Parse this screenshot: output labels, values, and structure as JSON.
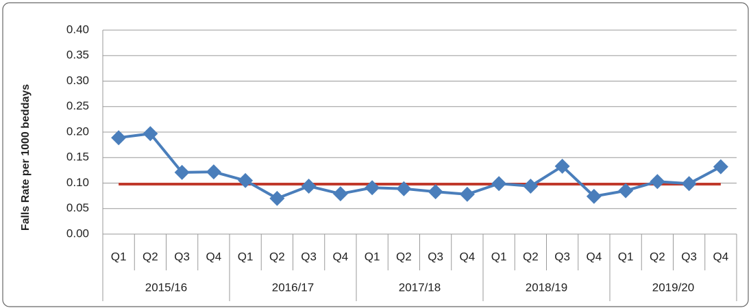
{
  "chart_data": {
    "type": "line",
    "y_label": "Falls Rate per 1000 beddays",
    "categories": [
      "Q1",
      "Q2",
      "Q3",
      "Q4",
      "Q1",
      "Q2",
      "Q3",
      "Q4",
      "Q1",
      "Q2",
      "Q3",
      "Q4",
      "Q1",
      "Q2",
      "Q3",
      "Q4",
      "Q1",
      "Q2",
      "Q3",
      "Q4"
    ],
    "groups": [
      "2015/16",
      "2016/17",
      "2017/18",
      "2018/19",
      "2019/20"
    ],
    "series": [
      {
        "color": "#4a7ebb",
        "values": [
          0.189,
          0.197,
          0.121,
          0.122,
          0.105,
          0.07,
          0.094,
          0.079,
          0.091,
          0.089,
          0.083,
          0.078,
          0.099,
          0.094,
          0.133,
          0.074,
          0.085,
          0.103,
          0.099,
          0.132
        ]
      }
    ],
    "reference": {
      "value": 0.098,
      "color": "#c0392b"
    },
    "ylim": [
      0,
      0.4
    ],
    "yticks": [
      {
        "value": 0,
        "label": "0.00"
      },
      {
        "value": 0.05,
        "label": "0.05"
      },
      {
        "value": 0.1,
        "label": "0.10"
      },
      {
        "value": 0.15,
        "label": "0.15"
      },
      {
        "value": 0.2,
        "label": "0.20"
      },
      {
        "value": 0.25,
        "label": "0.25"
      },
      {
        "value": 0.3,
        "label": "0.30"
      },
      {
        "value": 0.35,
        "label": "0.35"
      },
      {
        "value": 0.4,
        "label": "0.40"
      }
    ],
    "grid": true
  }
}
